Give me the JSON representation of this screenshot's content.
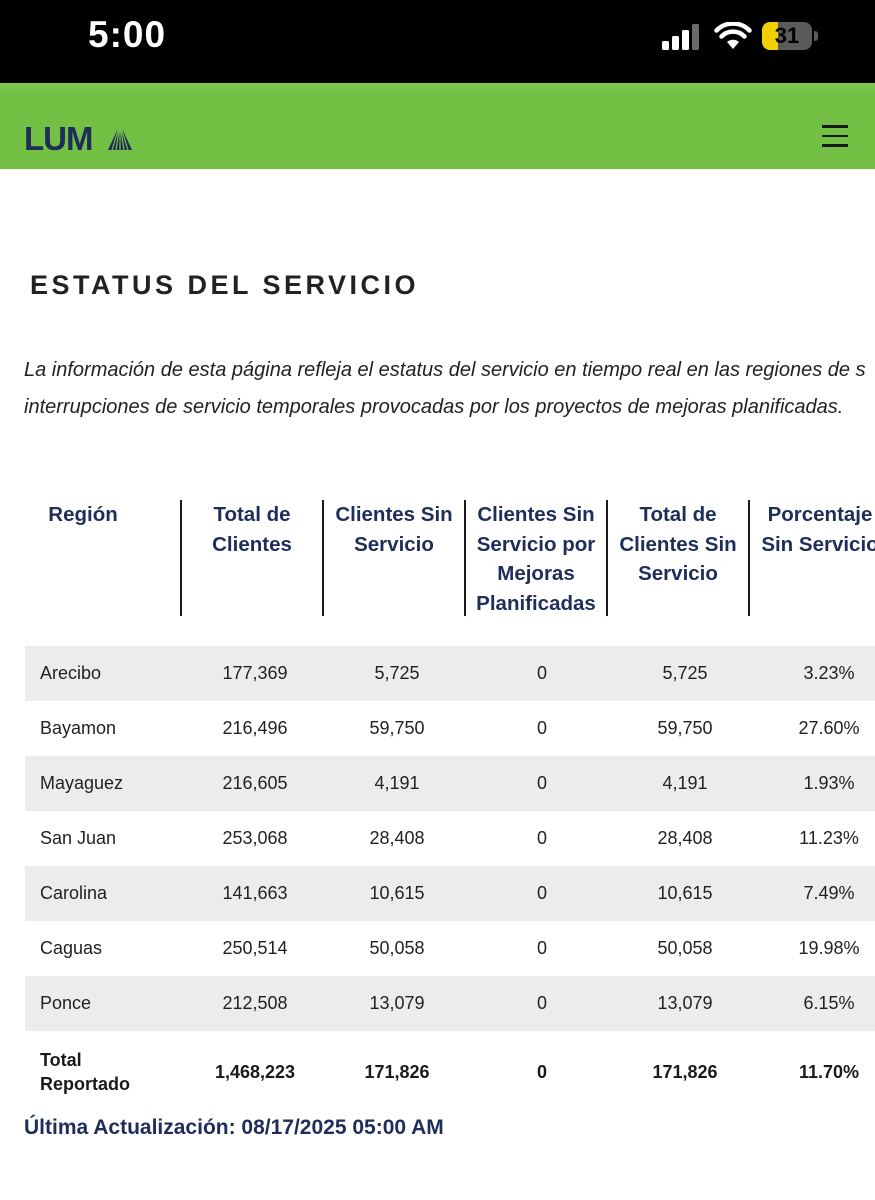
{
  "status_bar": {
    "time": "5:00",
    "battery_level": "31",
    "battery_fraction": 0.31,
    "battery_color": "#f0d000"
  },
  "header": {
    "logo_text": "LUMA",
    "menu_icon": "hamburger-menu-icon",
    "brand_color": "#74c045"
  },
  "main": {
    "title": "ESTATUS DEL SERVICIO",
    "intro_line1": "La información de esta página refleja el estatus del servicio en tiempo real en las regiones de s",
    "intro_line2": "interrupciones de servicio temporales provocadas por los proyectos de mejoras planificadas."
  },
  "table": {
    "headers": [
      [
        "Región"
      ],
      [
        "Total de",
        "Clientes"
      ],
      [
        "Clientes Sin",
        "Servicio"
      ],
      [
        "Clientes Sin",
        "Servicio por",
        "Mejoras",
        "Planificadas"
      ],
      [
        "Total de",
        "Clientes Sin",
        "Servicio"
      ],
      [
        "Porcentaje",
        "Sin Servicio"
      ]
    ],
    "rows": [
      [
        "Arecibo",
        "177,369",
        "5,725",
        "0",
        "5,725",
        "3.23%"
      ],
      [
        "Bayamon",
        "216,496",
        "59,750",
        "0",
        "59,750",
        "27.60%"
      ],
      [
        "Mayaguez",
        "216,605",
        "4,191",
        "0",
        "4,191",
        "1.93%"
      ],
      [
        "San Juan",
        "253,068",
        "28,408",
        "0",
        "28,408",
        "11.23%"
      ],
      [
        "Carolina",
        "141,663",
        "10,615",
        "0",
        "10,615",
        "7.49%"
      ],
      [
        "Caguas",
        "250,514",
        "50,058",
        "0",
        "50,058",
        "19.98%"
      ],
      [
        "Ponce",
        "212,508",
        "13,079",
        "0",
        "13,079",
        "6.15%"
      ]
    ],
    "total": {
      "label_line1": "Total",
      "label_line2": "Reportado",
      "values": [
        "1,468,223",
        "171,826",
        "0",
        "171,826",
        "11.70%"
      ]
    }
  },
  "footer": {
    "last_update": "Última Actualización: 08/17/2025 05:00 AM"
  }
}
